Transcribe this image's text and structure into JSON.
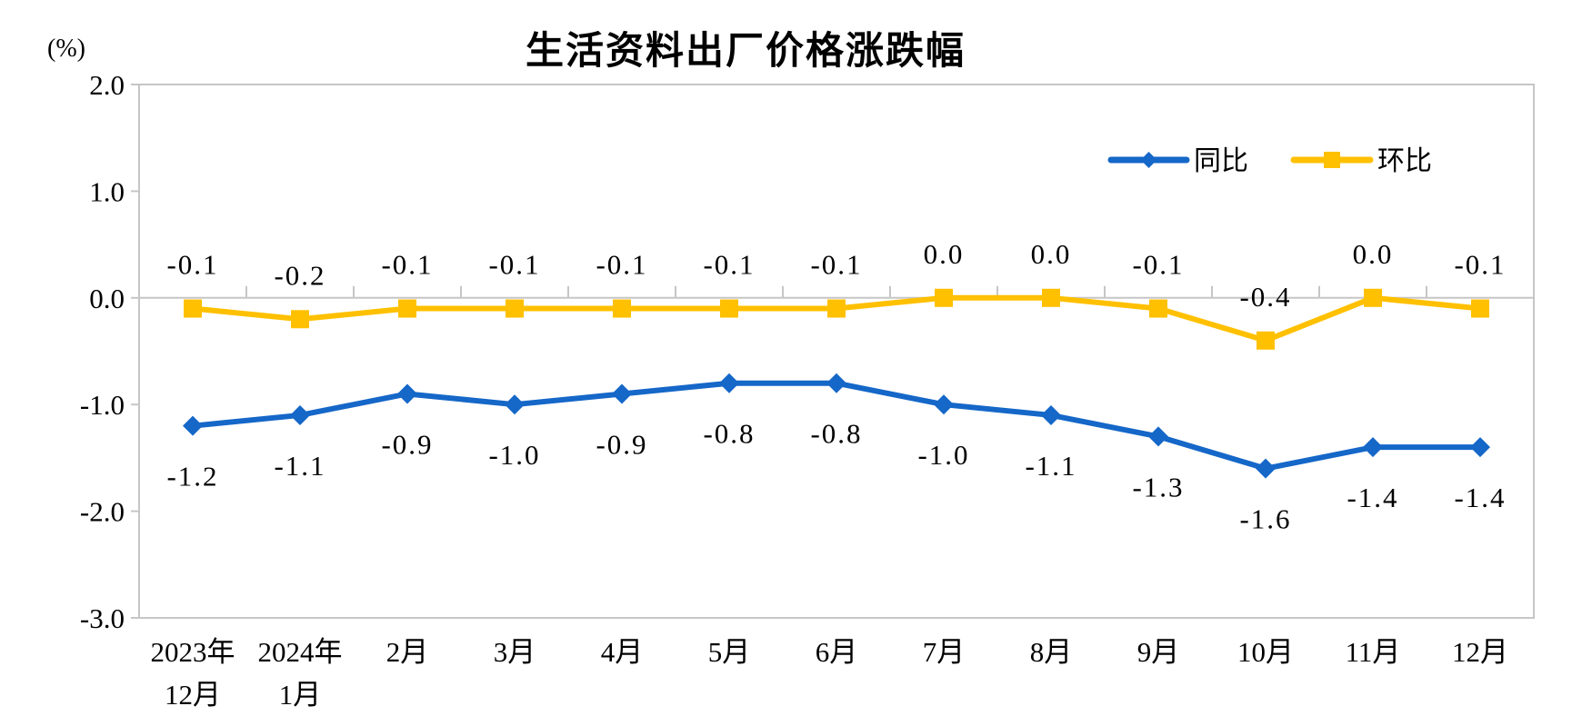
{
  "chart_data": {
    "type": "line",
    "title": "生活资料出厂价格涨跌幅",
    "unit_label": "(%)",
    "categories": [
      [
        "2023年",
        "12月"
      ],
      [
        "2024年",
        "1月"
      ],
      [
        "2月"
      ],
      [
        "3月"
      ],
      [
        "4月"
      ],
      [
        "5月"
      ],
      [
        "6月"
      ],
      [
        "7月"
      ],
      [
        "8月"
      ],
      [
        "9月"
      ],
      [
        "10月"
      ],
      [
        "11月"
      ],
      [
        "12月"
      ]
    ],
    "series": [
      {
        "name": "同比",
        "color": "#1567C8",
        "marker": "diamond",
        "label_position": "below",
        "values": [
          -1.2,
          -1.1,
          -0.9,
          -1.0,
          -0.9,
          -0.8,
          -0.8,
          -1.0,
          -1.1,
          -1.3,
          -1.6,
          -1.4,
          -1.4
        ]
      },
      {
        "name": "环比",
        "color": "#FFC000",
        "marker": "square",
        "label_position": "above",
        "values": [
          -0.1,
          -0.2,
          -0.1,
          -0.1,
          -0.1,
          -0.1,
          -0.1,
          0.0,
          0.0,
          -0.1,
          -0.4,
          0.0,
          -0.1
        ]
      }
    ],
    "ylim": [
      -3.0,
      2.0
    ],
    "yticks": [
      2.0,
      1.0,
      0.0,
      -1.0,
      -2.0,
      -3.0
    ],
    "grid": "zero-line-only",
    "legend_position": "top-right-inside",
    "axis_color": "#C6C6C6",
    "text_color": "#000000",
    "background": "#ffffff"
  }
}
